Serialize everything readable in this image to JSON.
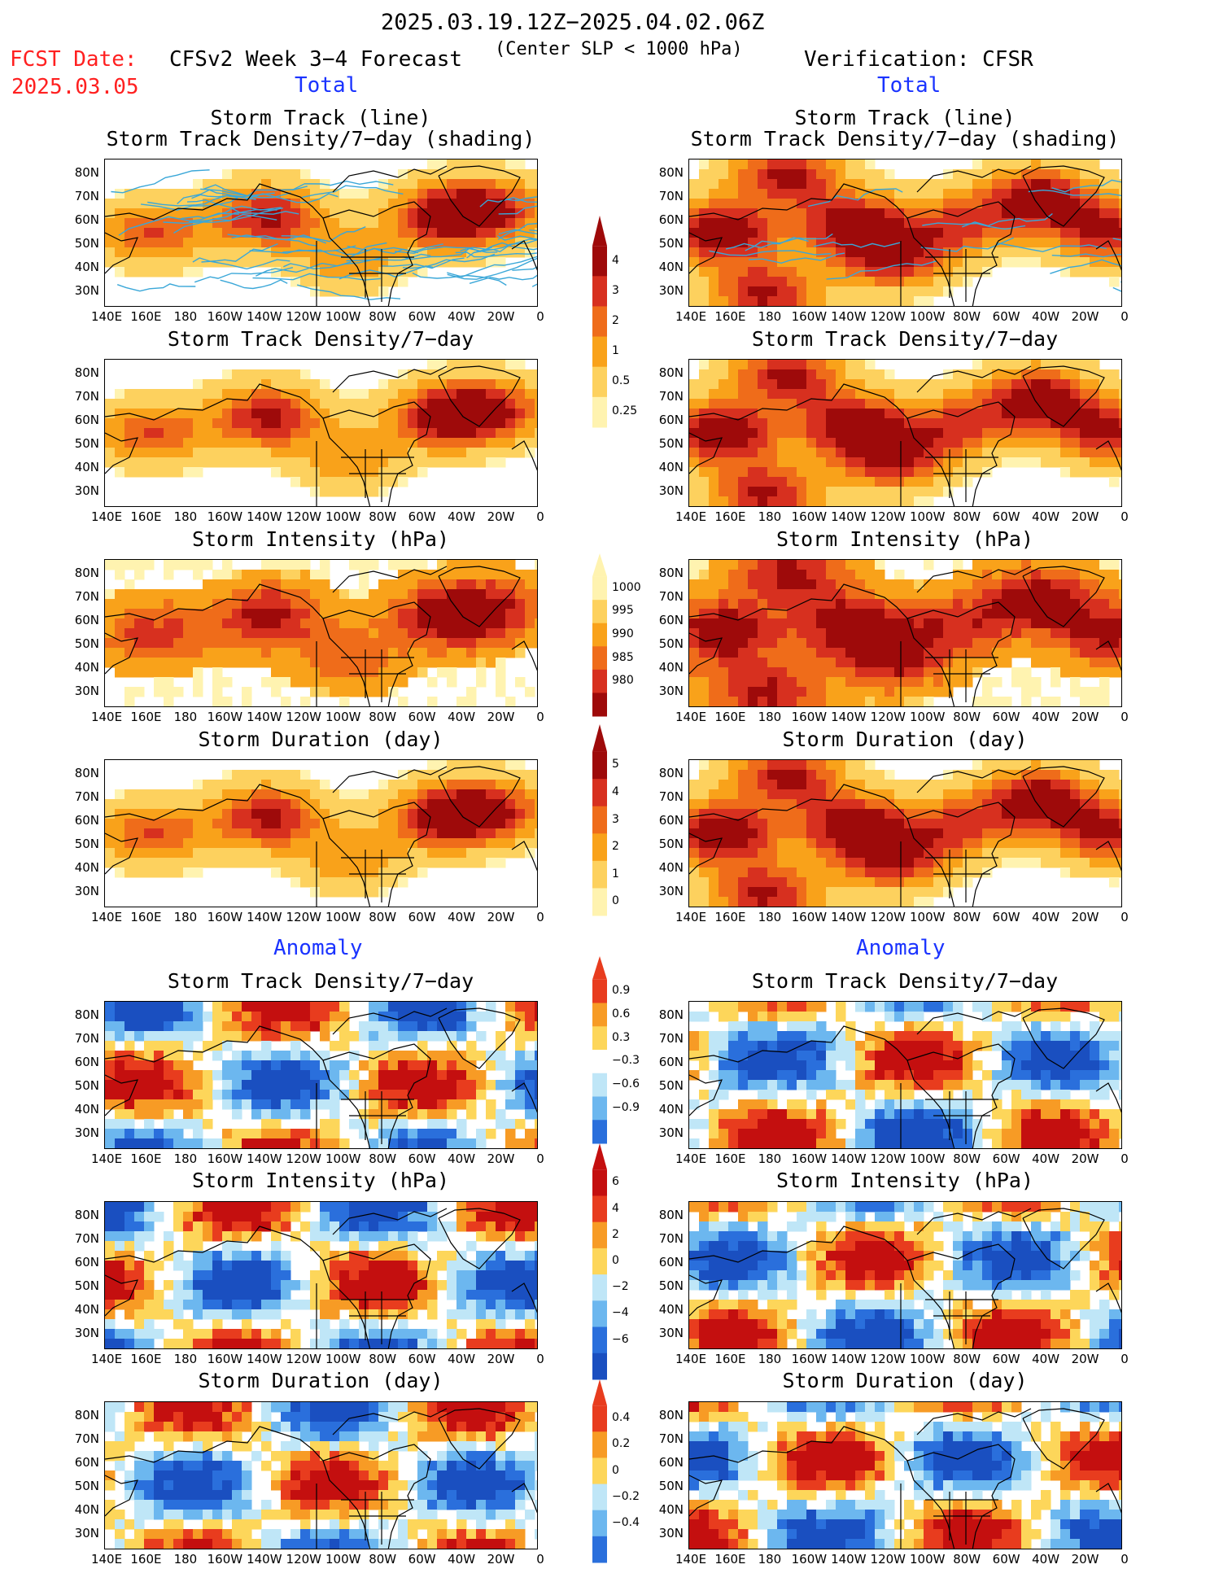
{
  "header": {
    "date_range": "2025.03.19.12Z−2025.04.02.06Z",
    "fcst_label": "FCST Date:",
    "fcst_date": "2025.03.05",
    "forecast_title": "CFSv2 Week 3−4 Forecast",
    "criteria": "(Center SLP < 1000 hPa)",
    "verification": "Verification: CFSR"
  },
  "sections": {
    "total": "Total",
    "anomaly": "Anomaly"
  },
  "panel_titles": {
    "track_line": "Storm Track (line)",
    "track_shading": "Storm Track Density/7−day (shading)",
    "density": "Storm Track Density/7−day",
    "intensity": "Storm Intensity (hPa)",
    "duration": "Storm Duration (day)"
  },
  "axes": {
    "lat_labels": [
      "80N",
      "70N",
      "60N",
      "50N",
      "40N",
      "30N"
    ],
    "lon_labels": [
      "140E",
      "160E",
      "180",
      "160W",
      "140W",
      "120W",
      "100W",
      "80W",
      "60W",
      "40W",
      "20W",
      "0"
    ]
  },
  "colorbars": {
    "density_total": {
      "labels": [
        "4",
        "3",
        "2",
        "1",
        "0.5",
        "0.25"
      ],
      "colors": [
        "#9e0a0a",
        "#d7301f",
        "#ef6c1a",
        "#f9a21a",
        "#fdd15e",
        "#fff3b0"
      ]
    },
    "intensity_total": {
      "labels": [
        "1000",
        "995",
        "990",
        "985",
        "980"
      ],
      "colors": [
        "#fff3b0",
        "#fdd15e",
        "#f9a21a",
        "#ef6c1a",
        "#d7301f",
        "#9e0a0a"
      ]
    },
    "duration_total": {
      "labels": [
        "5",
        "4",
        "3",
        "2",
        "1",
        "0"
      ],
      "colors": [
        "#9e0a0a",
        "#d7301f",
        "#ef6c1a",
        "#f9a21a",
        "#fdd15e",
        "#fff3b0"
      ]
    },
    "density_anom": {
      "labels": [
        "0.9",
        "0.6",
        "0.3",
        "−0.3",
        "−0.6",
        "−0.9"
      ],
      "colors": [
        "#e83c1e",
        "#f79b25",
        "#fdd65a",
        "#ffffff",
        "#bfe6f7",
        "#6cb7ef",
        "#2a6fdc"
      ]
    },
    "intensity_anom": {
      "labels": [
        "6",
        "4",
        "2",
        "0",
        "−2",
        "−4",
        "−6"
      ],
      "colors": [
        "#c40f0f",
        "#e83c1e",
        "#f79b25",
        "#fdd65a",
        "#bfe6f7",
        "#6cb7ef",
        "#2a6fdc",
        "#1a4fc0"
      ]
    },
    "duration_anom": {
      "labels": [
        "0.4",
        "0.2",
        "0",
        "−0.2",
        "−0.4"
      ],
      "colors": [
        "#e83c1e",
        "#f79b25",
        "#fdd65a",
        "#bfe6f7",
        "#6cb7ef",
        "#2a6fdc"
      ]
    }
  },
  "palette": {
    "land_outline": "#000000",
    "track_line": "#3aa7d8",
    "text_red": "#ff2020",
    "text_blue": "#1a33ff"
  }
}
